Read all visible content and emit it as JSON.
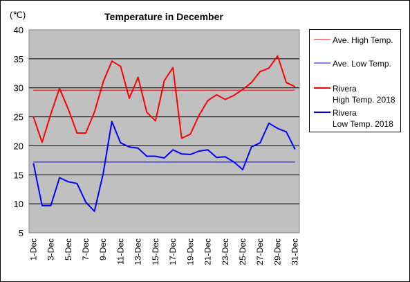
{
  "chart_data": {
    "type": "line",
    "title": "Temperature in December",
    "unit_label": "(℃)",
    "ylim": [
      5,
      40
    ],
    "y_ticks": [
      5,
      10,
      15,
      20,
      25,
      30,
      35,
      40
    ],
    "x_tick_labels": [
      "1-Dec",
      "3-Dec",
      "5-Dec",
      "7-Dec",
      "9-Dec",
      "11-Dec",
      "13-Dec",
      "15-Dec",
      "17-Dec",
      "19-Dec",
      "21-Dec",
      "23-Dec",
      "25-Dec",
      "27-Dec",
      "29-Dec",
      "31-Dec"
    ],
    "x": [
      1,
      2,
      3,
      4,
      5,
      6,
      7,
      8,
      9,
      10,
      11,
      12,
      13,
      14,
      15,
      16,
      17,
      18,
      19,
      20,
      21,
      22,
      23,
      24,
      25,
      26,
      27,
      28,
      29,
      30,
      31
    ],
    "grid": "horizontal",
    "legend_position": "right",
    "series": [
      {
        "name": "Ave. High Temp.",
        "style": "thin",
        "color": "#ff0000",
        "values": [
          29.6,
          29.6,
          29.6,
          29.6,
          29.6,
          29.6,
          29.6,
          29.6,
          29.6,
          29.6,
          29.6,
          29.6,
          29.6,
          29.6,
          29.6,
          29.6,
          29.6,
          29.6,
          29.6,
          29.6,
          29.6,
          29.6,
          29.6,
          29.6,
          29.6,
          29.6,
          29.6,
          29.6,
          29.6,
          29.6,
          29.6
        ]
      },
      {
        "name": "Ave. Low Temp.",
        "style": "thin",
        "color": "#0000ff",
        "values": [
          17.2,
          17.2,
          17.2,
          17.2,
          17.2,
          17.2,
          17.2,
          17.2,
          17.2,
          17.2,
          17.2,
          17.2,
          17.2,
          17.2,
          17.2,
          17.2,
          17.2,
          17.2,
          17.2,
          17.2,
          17.2,
          17.2,
          17.2,
          17.2,
          17.2,
          17.2,
          17.2,
          17.2,
          17.2,
          17.2,
          17.2
        ]
      },
      {
        "name": "Rivera High Temp. 2018",
        "name_lines": [
          "Rivera",
          "High Temp. 2018"
        ],
        "style": "thick",
        "color": "#ff0000",
        "values": [
          25.0,
          20.6,
          25.5,
          29.9,
          26.3,
          22.2,
          22.2,
          25.8,
          31.0,
          34.6,
          33.7,
          28.2,
          31.8,
          25.8,
          24.3,
          31.2,
          33.5,
          21.3,
          22.0,
          25.3,
          27.8,
          28.8,
          28.0,
          28.7,
          29.7,
          30.9,
          32.8,
          33.4,
          35.5,
          30.9,
          30.2
        ]
      },
      {
        "name": "Rivera Low Temp. 2018",
        "name_lines": [
          "Rivera",
          "Low Temp. 2018"
        ],
        "style": "thick",
        "color": "#0000ff",
        "values": [
          17.0,
          9.7,
          9.7,
          14.5,
          13.8,
          13.5,
          10.3,
          8.7,
          15.2,
          24.2,
          20.5,
          19.8,
          19.6,
          18.2,
          18.2,
          17.9,
          19.3,
          18.6,
          18.5,
          19.1,
          19.3,
          18.0,
          18.1,
          17.2,
          15.9,
          19.8,
          20.5,
          23.9,
          23.0,
          22.4,
          19.4
        ]
      }
    ]
  }
}
